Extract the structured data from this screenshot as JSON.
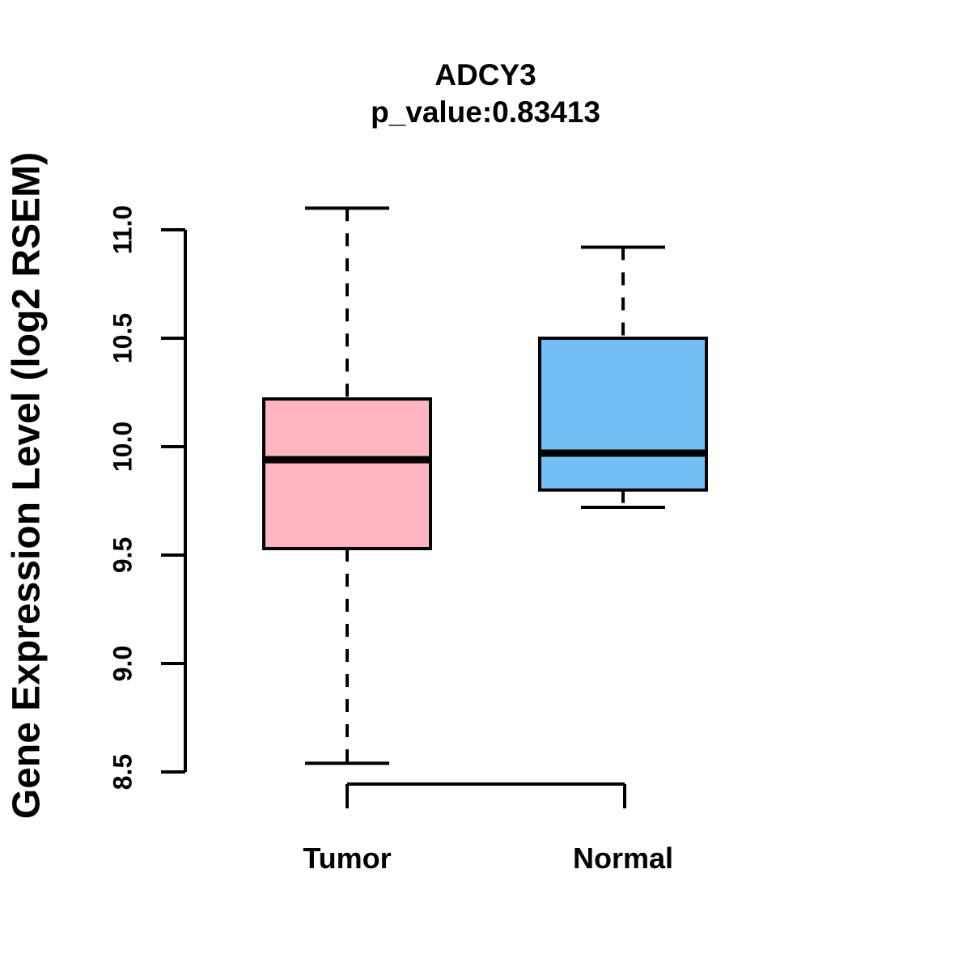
{
  "title": "ADCY3",
  "subtitle": "p_value:0.83413",
  "chart_data": {
    "type": "boxplot",
    "title": "ADCY3",
    "subtitle": "p_value:0.83413",
    "ylabel": "Gene Expression Level (log2 RSEM)",
    "xlabel": "",
    "categories": [
      "Tumor",
      "Normal"
    ],
    "yticks": [
      "8.5",
      "9.0",
      "9.5",
      "10.0",
      "10.5",
      "11.0"
    ],
    "ytick_values": [
      8.5,
      9.0,
      9.5,
      10.0,
      10.5,
      11.0
    ],
    "ylim": [
      8.5,
      11.0
    ],
    "grid": false,
    "legend": false,
    "axis_color": "#000000",
    "series": [
      {
        "name": "Tumor",
        "fill_color": "#FFB6C1",
        "border_color": "#000000",
        "lower_whisker": 8.54,
        "q1": 9.53,
        "median": 9.94,
        "q3": 10.22,
        "upper_whisker": 11.1
      },
      {
        "name": "Normal",
        "fill_color": "#74BEF6",
        "border_color": "#000000",
        "lower_whisker": 9.72,
        "q1": 9.8,
        "median": 9.97,
        "q3": 10.5,
        "upper_whisker": 10.92
      }
    ]
  }
}
